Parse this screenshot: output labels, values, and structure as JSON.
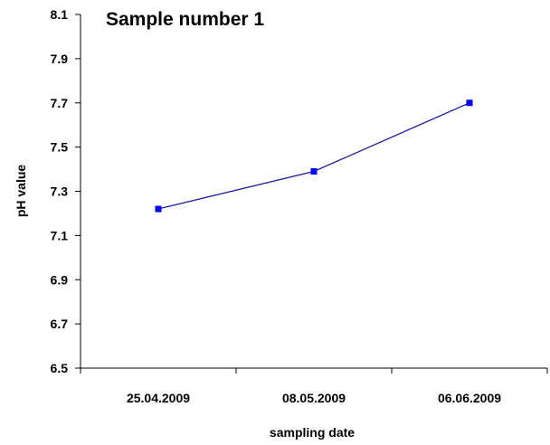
{
  "chart_data": {
    "type": "line",
    "title": "Sample number 1",
    "xlabel": "sampling date",
    "ylabel": "pH value",
    "categories": [
      "25.04.2009",
      "08.05.2009",
      "06.06.2009"
    ],
    "series": [
      {
        "values": [
          7.22,
          7.39,
          7.7
        ],
        "color": "#0000ff",
        "marker": "square"
      }
    ],
    "ylim": [
      6.5,
      8.1
    ],
    "yticks": [
      "6.5",
      "6.7",
      "6.9",
      "7.1",
      "7.3",
      "7.5",
      "7.7",
      "7.9",
      "8.1"
    ],
    "grid": false,
    "legend": "none",
    "axis_color": "#000000"
  }
}
